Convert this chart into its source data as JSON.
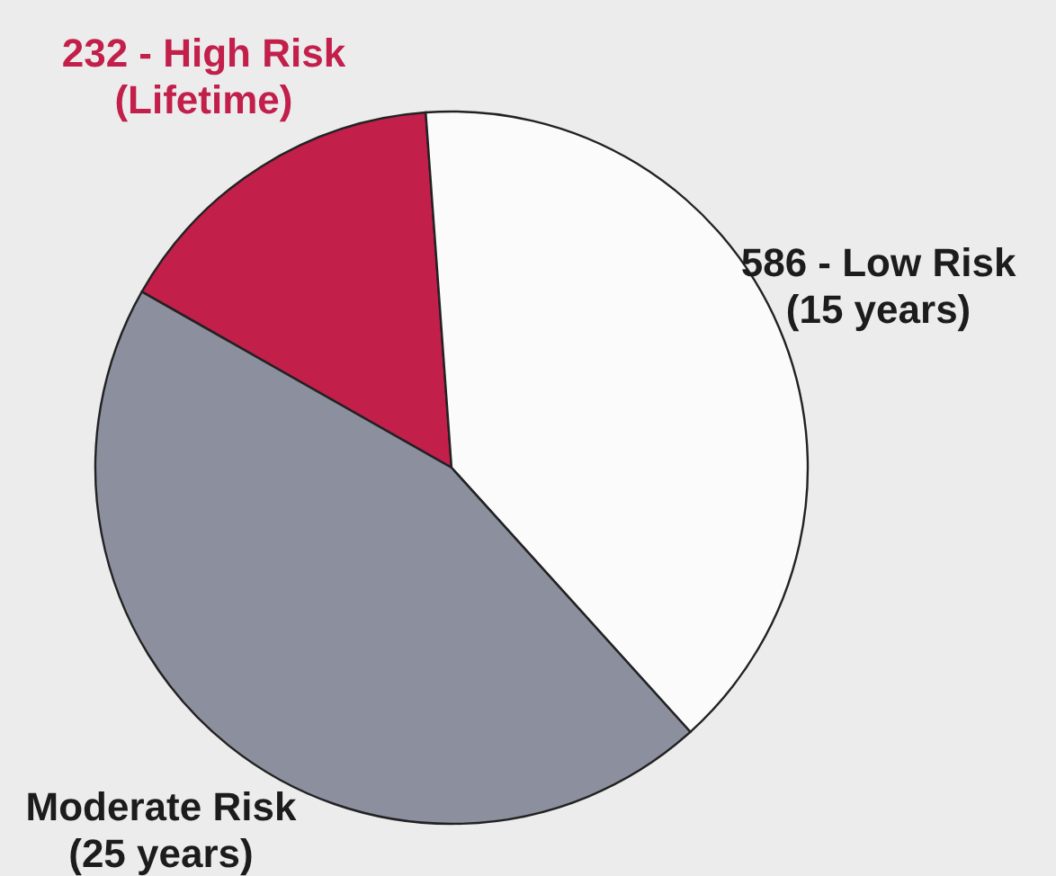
{
  "chart_data": {
    "type": "pie",
    "categories": [
      "High Risk (Lifetime)",
      "Low Risk (15 years)",
      "Moderate Risk (25 years)"
    ],
    "values": [
      232,
      586,
      667
    ],
    "value_labels": [
      "232",
      "586",
      null
    ],
    "colors": [
      "#c21f4b",
      "#fbfbfb",
      "#8c8f9e"
    ]
  }
}
